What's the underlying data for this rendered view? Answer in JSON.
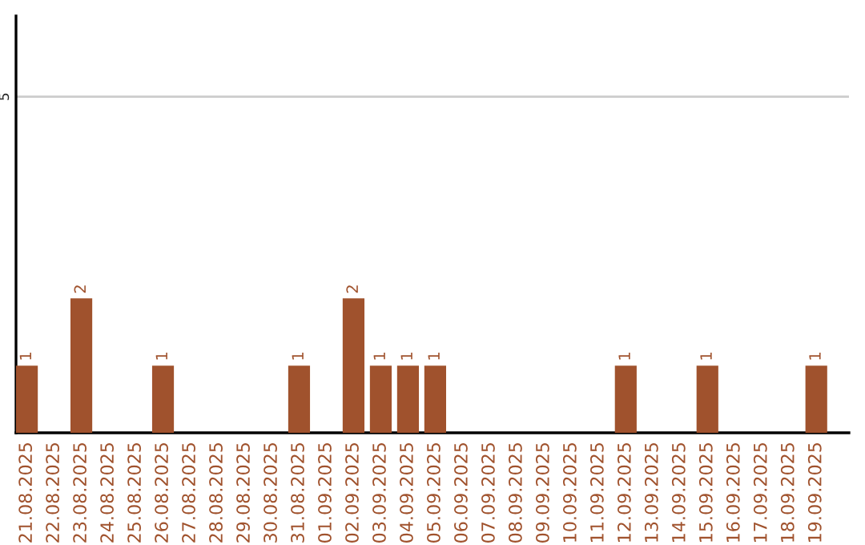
{
  "chart_data": {
    "type": "bar",
    "categories": [
      "21.08.2025",
      "22.08.2025",
      "23.08.2025",
      "24.08.2025",
      "25.08.2025",
      "26.08.2025",
      "27.08.2025",
      "28.08.2025",
      "29.08.2025",
      "30.08.2025",
      "31.08.2025",
      "01.09.2025",
      "02.09.2025",
      "03.09.2025",
      "04.09.2025",
      "05.09.2025",
      "06.09.2025",
      "07.09.2025",
      "08.09.2025",
      "09.09.2025",
      "10.09.2025",
      "11.09.2025",
      "12.09.2025",
      "13.09.2025",
      "14.09.2025",
      "15.09.2025",
      "16.09.2025",
      "17.09.2025",
      "18.09.2025",
      "19.09.2025"
    ],
    "values": [
      1,
      null,
      2,
      null,
      null,
      1,
      null,
      null,
      null,
      null,
      1,
      null,
      2,
      1,
      1,
      1,
      null,
      null,
      null,
      null,
      null,
      null,
      1,
      null,
      null,
      1,
      null,
      null,
      null,
      1
    ],
    "value_labels": [
      "1",
      null,
      "2",
      null,
      null,
      "1",
      null,
      null,
      null,
      null,
      "1",
      null,
      "2",
      "1",
      "1",
      "1",
      null,
      null,
      null,
      null,
      null,
      null,
      "1",
      null,
      null,
      "1",
      null,
      null,
      null,
      "1"
    ],
    "color": "#a0522d",
    "ylim": [
      0,
      6.2
    ],
    "yticks": [
      5
    ],
    "grid": "y",
    "legend": false
  }
}
